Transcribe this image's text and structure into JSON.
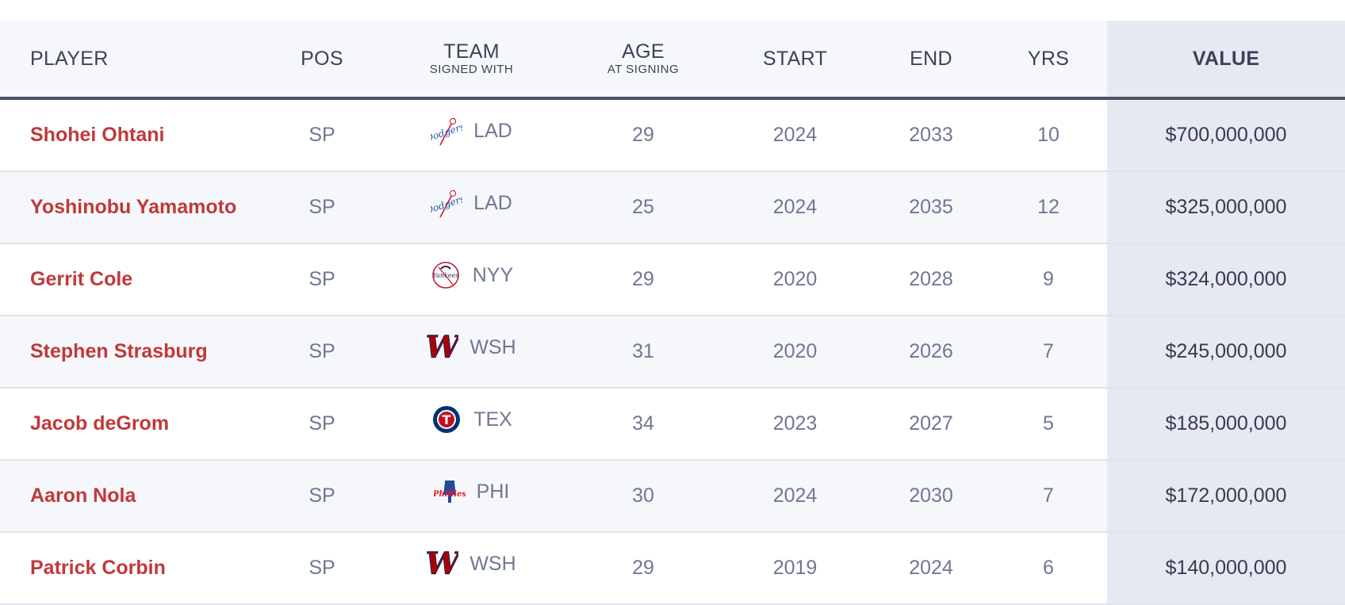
{
  "header": {
    "player": "PLAYER",
    "pos": "POS",
    "team": "TEAM",
    "team_sub": "SIGNED WITH",
    "age": "AGE",
    "age_sub": "AT SIGNING",
    "start": "START",
    "end": "END",
    "yrs": "YRS",
    "value": "VALUE"
  },
  "colors": {
    "player_name": "#c0393b",
    "muted_text": "#6f7891",
    "value_column_bg": "#e6e9f2",
    "header_rule": "#4a5263"
  },
  "rows": [
    {
      "player": "Shohei Ohtani",
      "pos": "SP",
      "team": "LAD",
      "logo": "dodgers-logo-icon",
      "age": "29",
      "start": "2024",
      "end": "2033",
      "yrs": "10",
      "value": "$700,000,000"
    },
    {
      "player": "Yoshinobu Yamamoto",
      "pos": "SP",
      "team": "LAD",
      "logo": "dodgers-logo-icon",
      "age": "25",
      "start": "2024",
      "end": "2035",
      "yrs": "12",
      "value": "$325,000,000"
    },
    {
      "player": "Gerrit Cole",
      "pos": "SP",
      "team": "NYY",
      "logo": "yankees-logo-icon",
      "age": "29",
      "start": "2020",
      "end": "2028",
      "yrs": "9",
      "value": "$324,000,000"
    },
    {
      "player": "Stephen Strasburg",
      "pos": "SP",
      "team": "WSH",
      "logo": "nationals-logo-icon",
      "age": "31",
      "start": "2020",
      "end": "2026",
      "yrs": "7",
      "value": "$245,000,000"
    },
    {
      "player": "Jacob deGrom",
      "pos": "SP",
      "team": "TEX",
      "logo": "rangers-logo-icon",
      "age": "34",
      "start": "2023",
      "end": "2027",
      "yrs": "5",
      "value": "$185,000,000"
    },
    {
      "player": "Aaron Nola",
      "pos": "SP",
      "team": "PHI",
      "logo": "phillies-logo-icon",
      "age": "30",
      "start": "2024",
      "end": "2030",
      "yrs": "7",
      "value": "$172,000,000"
    },
    {
      "player": "Patrick Corbin",
      "pos": "SP",
      "team": "WSH",
      "logo": "nationals-logo-icon",
      "age": "29",
      "start": "2019",
      "end": "2024",
      "yrs": "6",
      "value": "$140,000,000"
    }
  ]
}
